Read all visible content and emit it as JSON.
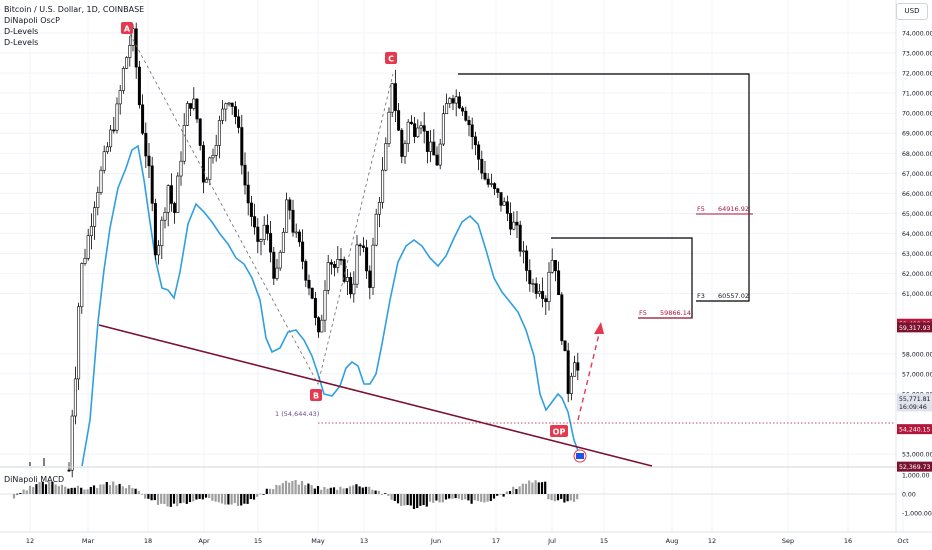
{
  "legend": {
    "title": "Bitcoin / U.S. Dollar, 1D, COINBASE",
    "indicators": [
      "DiNapoli OscP",
      "D-Levels",
      "D-Levels"
    ]
  },
  "currency_button": "USD",
  "macd_label": "DiNapoli MACD",
  "price_axis": {
    "ticks": [
      "74,000.00",
      "73,000.00",
      "72,000.00",
      "71,000.00",
      "70,000.00",
      "69,000.00",
      "68,000.00",
      "67,000.00",
      "66,000.00",
      "65,000.00",
      "64,000.00",
      "63,000.00",
      "62,000.00",
      "61,000.00",
      "58,000.00",
      "57,000.00",
      "56,000.00",
      "53,000.00"
    ],
    "tick_values": [
      74000,
      73000,
      72000,
      71000,
      70000,
      69000,
      68000,
      67000,
      66000,
      65000,
      64000,
      63000,
      62000,
      61000,
      58000,
      57000,
      56000,
      53000
    ],
    "range": [
      52000,
      74800
    ]
  },
  "macd_axis": {
    "ticks": [
      "1,000.00",
      "0.00",
      "-1,000.00"
    ],
    "tick_values": [
      1000,
      0,
      -1000
    ]
  },
  "price_labels": [
    {
      "text": "59,498.28",
      "value": 59498.28,
      "bg": "#b2163b",
      "fg": "#ffffff"
    },
    {
      "text": "59,317.93",
      "value": 59317.93,
      "bg": "#7a1230",
      "fg": "#ffffff"
    },
    {
      "text": "55,771.81",
      "sub": "16:09:46",
      "value": 55771.81,
      "bg": "#e0e3eb",
      "fg": "#131722"
    },
    {
      "text": "54,240.15",
      "value": 54240.15,
      "bg": "#b2163b",
      "fg": "#ffffff"
    },
    {
      "text": "52,369.73",
      "value": 52369.73,
      "bg": "#7a1230",
      "fg": "#ffffff"
    }
  ],
  "time_axis": {
    "labels": [
      "12",
      "Mar",
      "18",
      "Apr",
      "15",
      "May",
      "13",
      "Jun",
      "17",
      "Jul",
      "15",
      "Aug",
      "12",
      "Sep",
      "16",
      "Oct"
    ]
  },
  "annotations": {
    "points": [
      {
        "label": "A",
        "bg": "#e53950"
      },
      {
        "label": "B",
        "bg": "#e53950"
      },
      {
        "label": "C",
        "bg": "#e53950"
      },
      {
        "label": "OP",
        "bg": "#e53950"
      }
    ],
    "fib_labels": [
      {
        "name": "F5",
        "value": "64916.92"
      },
      {
        "name": "F5",
        "value": "59866.14"
      },
      {
        "name": "F3",
        "value": "60557.02"
      }
    ],
    "level_label": "1 (54,644.43)"
  },
  "colors": {
    "up": "#ffffff",
    "down": "#000000",
    "oscillator": "#2f9fe0",
    "trendline": "#7a1230",
    "red": "#e53950",
    "dotted": "#b2163b"
  }
}
